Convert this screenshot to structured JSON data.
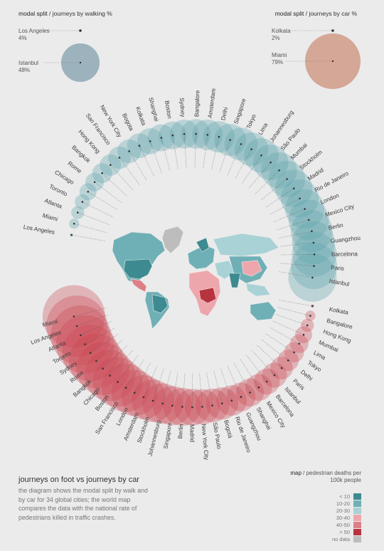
{
  "walk_header": {
    "bold": "modal split",
    "rest": " / journeys by walking %"
  },
  "car_header": {
    "bold": "modal split",
    "rest": " / journeys by car %"
  },
  "walk_legend": [
    {
      "city": "Los Angeles",
      "value": "4%"
    },
    {
      "city": "Istanbul",
      "value": "48%"
    }
  ],
  "car_legend": [
    {
      "city": "Kolkata",
      "value": "2%"
    },
    {
      "city": "Miami",
      "value": "79%"
    }
  ],
  "walk_cities": [
    "Los Angeles",
    "Miami",
    "Atlanta",
    "Toronto",
    "Chicago",
    "Rome",
    "Bangkok",
    "Hong Kong",
    "San Francisco",
    "New York City",
    "Bogota",
    "Kolkata",
    "Shanghai",
    "Boston",
    "Sydney",
    "Bangalore",
    "Amsterdam",
    "Delhi",
    "Singapore",
    "Tokyo",
    "Lima",
    "Johannesburg",
    "São Paulo",
    "Mumbai",
    "Stockholm",
    "Madrid",
    "Rio de Janeiro",
    "London",
    "Mexico City",
    "Berlin",
    "Guangzhou",
    "Barcelona",
    "Paris",
    "Istanbul"
  ],
  "walk_values": [
    4,
    5,
    6,
    7,
    8,
    9,
    10,
    11,
    12,
    13,
    14,
    15,
    16,
    17,
    18,
    19,
    20,
    21,
    22,
    23,
    24,
    25,
    26,
    27,
    28,
    29,
    30,
    32,
    34,
    36,
    38,
    41,
    44,
    48
  ],
  "car_cities": [
    "Miami",
    "Los Angeles",
    "Atlanta",
    "Toronto",
    "Sydney",
    "Rome",
    "Bangkok",
    "Chicago",
    "Boston",
    "San Francisco",
    "London",
    "Amsterdam",
    "Stockholm",
    "Johannesburg",
    "Singapore",
    "Berlin",
    "Madrid",
    "New York City",
    "São Paulo",
    "Bogotá",
    "Rio de Janeiro",
    "Guangzhou",
    "Shanghai",
    "Mexico City",
    "Barcelona",
    "Istanbul",
    "Paris",
    "Delhi",
    "Tokyo",
    "Lima",
    "Mumbai",
    "Hong Kong",
    "Bangalore",
    "Kolkata"
  ],
  "car_values": [
    79,
    75,
    72,
    68,
    64,
    60,
    56,
    52,
    49,
    46,
    42,
    38,
    35,
    32,
    30,
    28,
    26,
    24,
    22,
    20,
    18,
    16,
    15,
    14,
    13,
    12,
    10,
    9,
    8,
    7,
    6,
    4,
    3,
    2
  ],
  "caption": {
    "title": "journeys on foot vs journeys by car",
    "body": "the diagram shows the modal split by walk and by car for 34 global cities; the world map compares the data with the national rate of pedestrians killed in traffic crashes."
  },
  "map_legend": {
    "bold": "map",
    "title": " / pedestrian deaths per",
    "title2": "100k people",
    "items": [
      {
        "label": "< 10",
        "color": "#3d8a91"
      },
      {
        "label": "10-20",
        "color": "#6fb0b6"
      },
      {
        "label": "20-30",
        "color": "#a8d2d6"
      },
      {
        "label": "30-40",
        "color": "#eea6ad"
      },
      {
        "label": "40-50",
        "color": "#de7f88"
      },
      {
        "label": "> 50",
        "color": "#b73340"
      },
      {
        "label": "no data",
        "color": "#bdbdbd"
      }
    ]
  },
  "colors": {
    "walk": "#5aa1ab",
    "car": "#c94452",
    "background": "#ebebeb"
  }
}
